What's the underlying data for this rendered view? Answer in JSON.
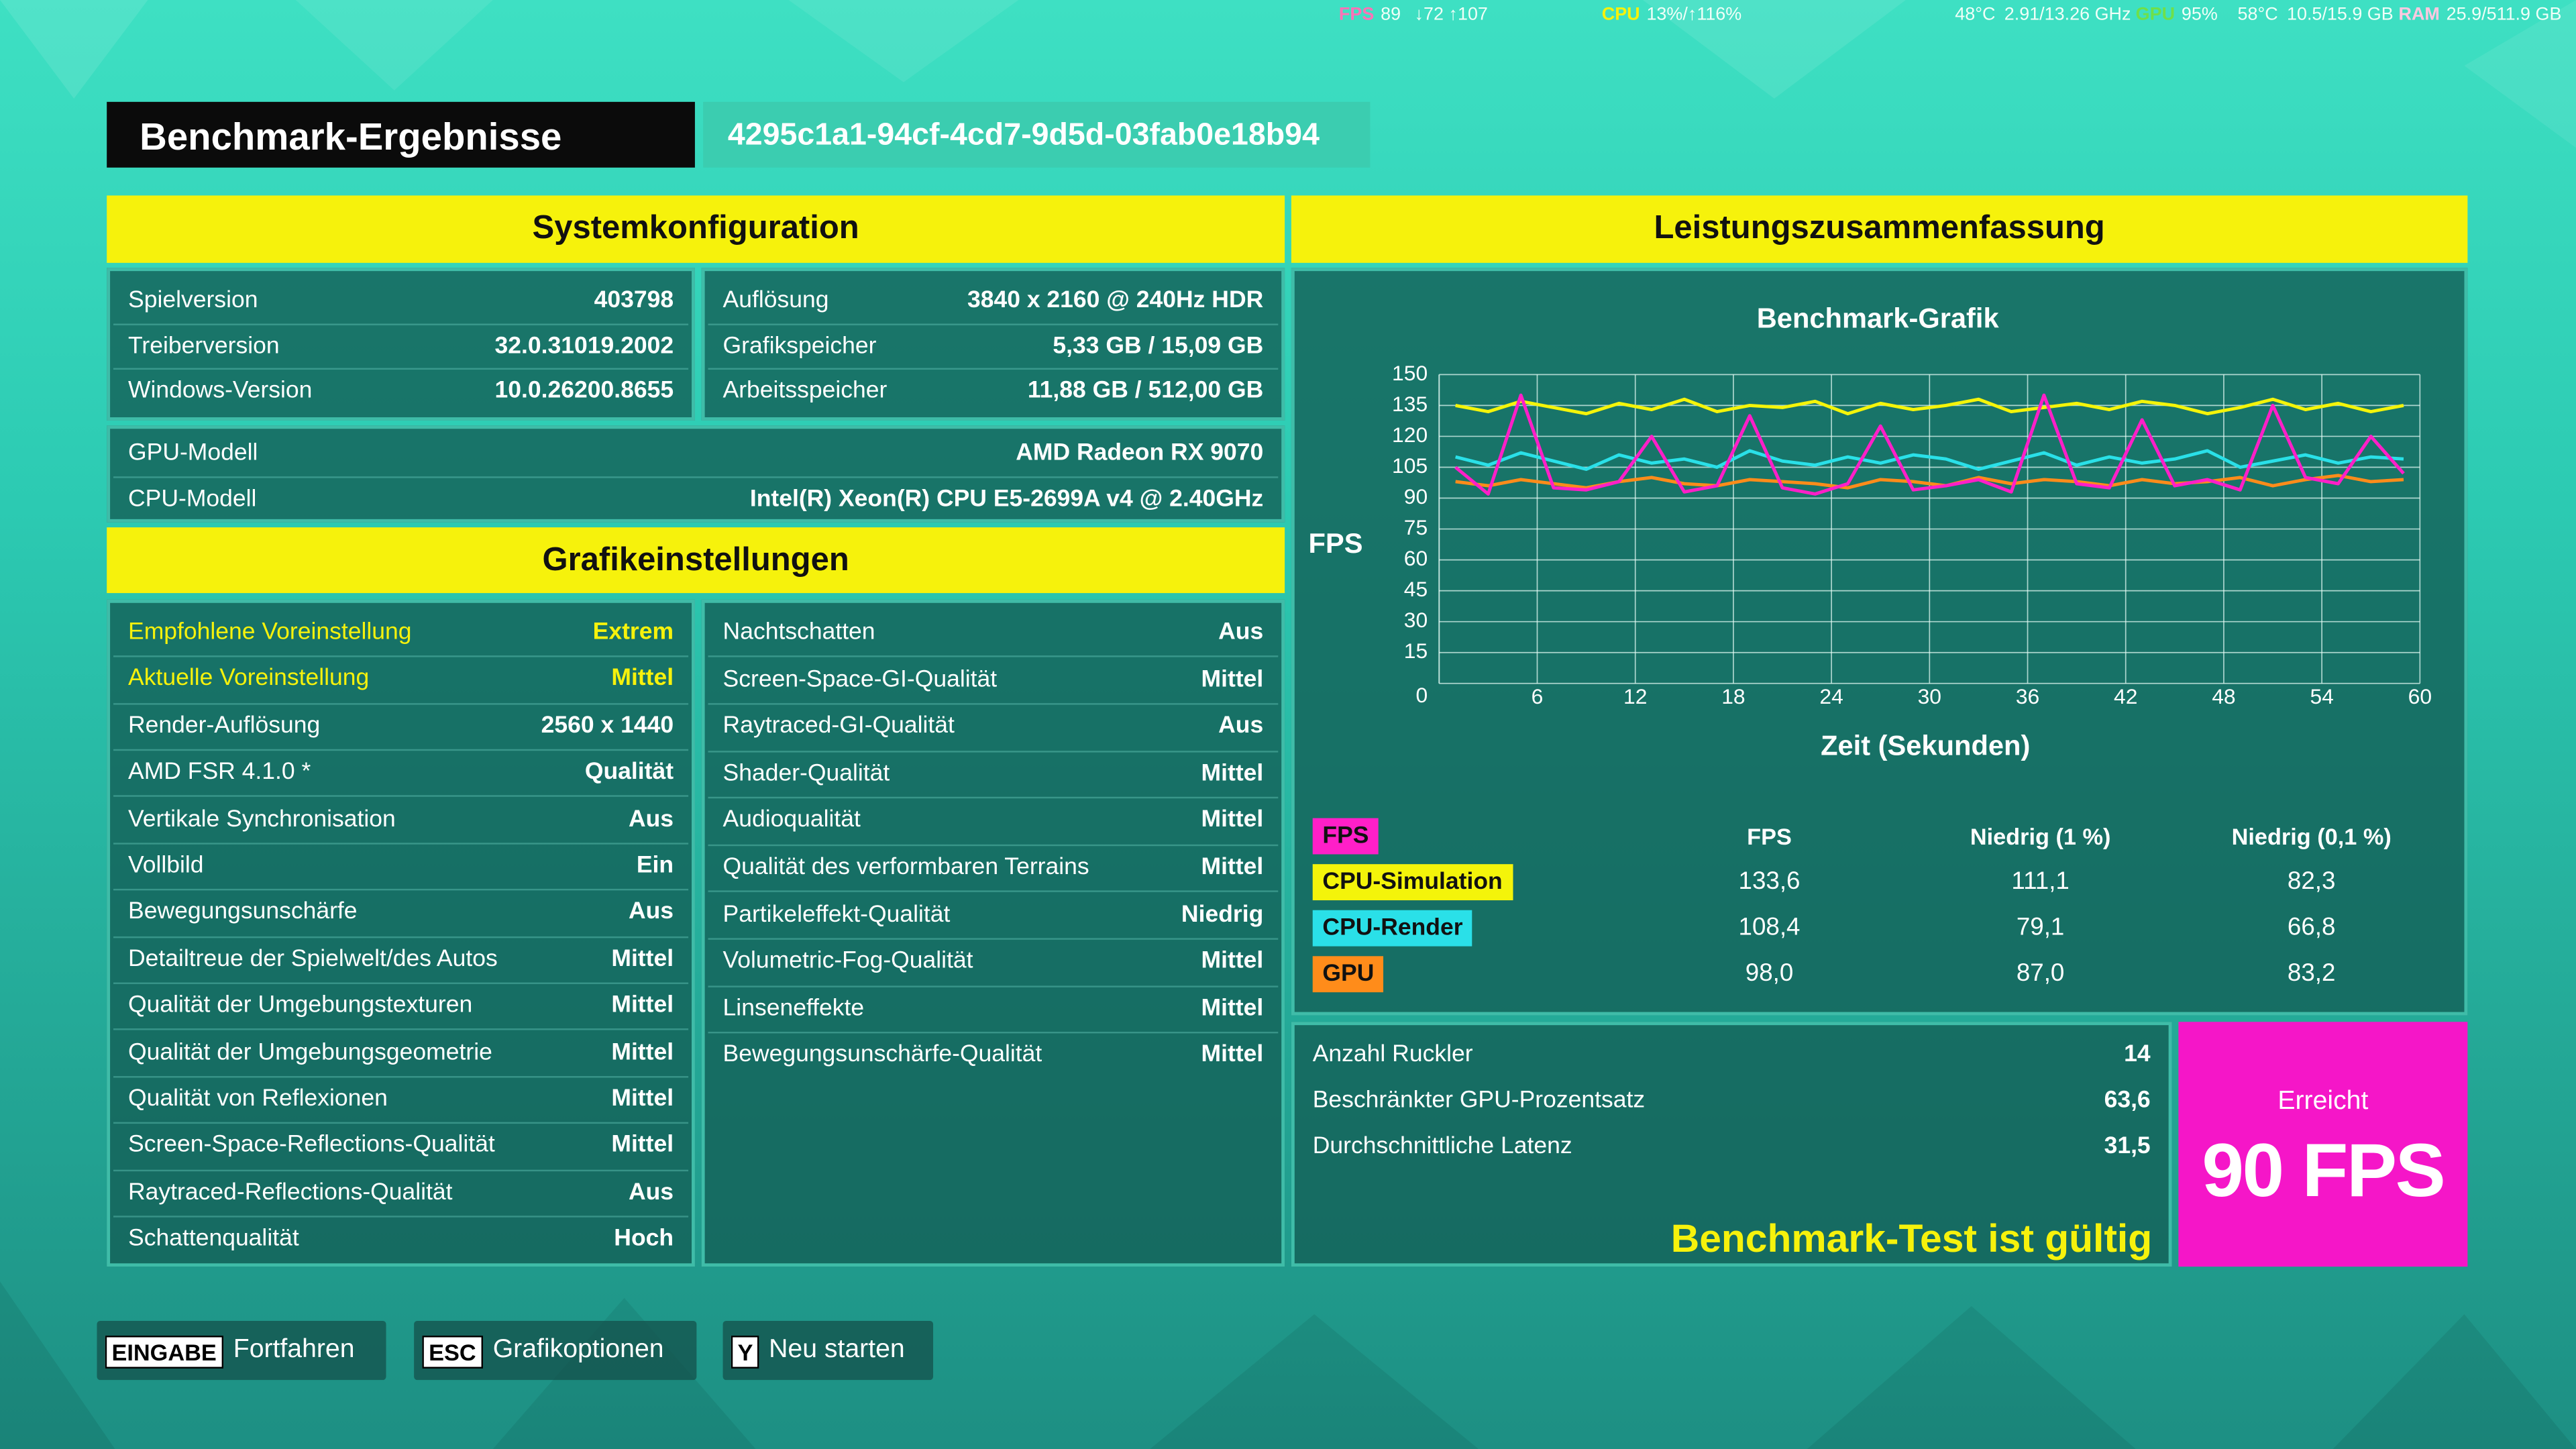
{
  "overlay": [
    {
      "label": "FPS",
      "value": "89"
    },
    {
      "value": "↓72 ↑107"
    },
    {
      "label": "CPU",
      "value": "13%/↑116%"
    },
    {
      "value": "48°C"
    },
    {
      "value": "2.91/13.26 GHz"
    },
    {
      "label": "GPU",
      "value": "95%"
    },
    {
      "value": "58°C"
    },
    {
      "value": "10.5/15.9 GB"
    },
    {
      "label": "RAM",
      "value": "25.9/511.9 GB"
    }
  ],
  "header": {
    "title": "Benchmark-Ergebnisse",
    "id": "4295c1a1-94cf-4cd7-9d5d-03fab0e18b94"
  },
  "system": {
    "title": "Systemkonfiguration",
    "left": [
      [
        "Spielversion",
        "403798"
      ],
      [
        "Treiberversion",
        "32.0.31019.2002"
      ],
      [
        "Windows-Version",
        "10.0.26200.8655"
      ]
    ],
    "right": [
      [
        "Auflösung",
        "3840 x 2160 @ 240Hz HDR"
      ],
      [
        "Grafikspeicher",
        "5,33 GB / 15,09 GB"
      ],
      [
        "Arbeitsspeicher",
        "11,88 GB / 512,00 GB"
      ]
    ],
    "hardware": [
      [
        "GPU-Modell",
        "AMD Radeon RX 9070"
      ],
      [
        "CPU-Modell",
        "Intel(R) Xeon(R) CPU E5-2699A v4 @ 2.40GHz"
      ]
    ]
  },
  "graphics": {
    "title": "Grafikeinstellungen",
    "left": [
      [
        "Empfohlene Voreinstellung",
        "Extrem"
      ],
      [
        "Aktuelle Voreinstellung",
        "Mittel"
      ],
      [
        "Render-Auflösung",
        "2560 x 1440"
      ],
      [
        "AMD FSR 4.1.0 *",
        "Qualität"
      ],
      [
        "Vertikale Synchronisation",
        "Aus"
      ],
      [
        "Vollbild",
        "Ein"
      ],
      [
        "Bewegungsunschärfe",
        "Aus"
      ],
      [
        "Detailtreue der Spielwelt/des Autos",
        "Mittel"
      ],
      [
        "Qualität der Umgebungstexturen",
        "Mittel"
      ],
      [
        "Qualität der Umgebungsgeometrie",
        "Mittel"
      ],
      [
        "Qualität von Reflexionen",
        "Mittel"
      ],
      [
        "Screen-Space-Reflections-Qualität",
        "Mittel"
      ],
      [
        "Raytraced-Reflections-Qualität",
        "Aus"
      ],
      [
        "Schattenqualität",
        "Hoch"
      ]
    ],
    "right": [
      [
        "Nachtschatten",
        "Aus"
      ],
      [
        "Screen-Space-GI-Qualität",
        "Mittel"
      ],
      [
        "Raytraced-GI-Qualität",
        "Aus"
      ],
      [
        "Shader-Qualität",
        "Mittel"
      ],
      [
        "Audioqualität",
        "Mittel"
      ],
      [
        "Qualität des verformbaren Terrains",
        "Mittel"
      ],
      [
        "Partikeleffekt-Qualität",
        "Niedrig"
      ],
      [
        "Volumetric-Fog-Qualität",
        "Mittel"
      ],
      [
        "Linseneffekte",
        "Mittel"
      ],
      [
        "Bewegungsunschärfe-Qualität",
        "Mittel"
      ]
    ],
    "highlight_color": "#f6f20c",
    "highlight_rows": [
      0,
      1
    ]
  },
  "performance": {
    "title": "Leistungszusammenfassung",
    "columns": [
      "FPS",
      "Niedrig (1 %)",
      "Niedrig (0,1 %)"
    ],
    "rows": [
      [
        "133,6",
        "111,1",
        "82,3"
      ],
      [
        "108,4",
        "79,1",
        "66,8"
      ],
      [
        "98,0",
        "87,0",
        "83,2"
      ]
    ],
    "stats": [
      [
        "Anzahl Ruckler",
        "14"
      ],
      [
        "Beschränkter GPU-Prozentsatz",
        "63,6"
      ],
      [
        "Durchschnittliche Latenz",
        "31,5"
      ]
    ],
    "valid": "Benchmark-Test ist gültig",
    "achieved_label": "Erreicht",
    "achieved": "90 FPS"
  },
  "footer": [
    {
      "key": "EINGABE",
      "label": "Fortfahren"
    },
    {
      "key": "ESC",
      "label": "Grafikoptionen"
    },
    {
      "key": "Y",
      "label": "Neu starten"
    }
  ],
  "chart_data": {
    "type": "line",
    "title": "Benchmark-Grafik",
    "y_label": "FPS",
    "x_label": "Zeit (Sekunden)",
    "xlim": [
      0,
      60
    ],
    "ylim": [
      0,
      150
    ],
    "xticks": [
      6,
      12,
      18,
      24,
      30,
      36,
      42,
      48,
      54,
      60
    ],
    "yticks": [
      0,
      15,
      30,
      45,
      60,
      75,
      90,
      105,
      120,
      135,
      150
    ],
    "grid": true,
    "x": [
      1,
      3,
      5,
      7,
      9,
      11,
      13,
      15,
      17,
      19,
      21,
      23,
      25,
      27,
      29,
      31,
      33,
      35,
      37,
      39,
      41,
      43,
      45,
      47,
      49,
      51,
      53,
      55,
      57,
      59
    ],
    "series": [
      {
        "name": "FPS",
        "color": "#ff1fc8",
        "values": [
          105,
          92,
          140,
          95,
          94,
          98,
          120,
          93,
          96,
          130,
          95,
          92,
          97,
          125,
          94,
          96,
          99,
          93,
          140,
          97,
          95,
          128,
          96,
          99,
          94,
          135,
          100,
          97,
          120,
          102
        ]
      },
      {
        "name": "CPU-Simulation",
        "color": "#f4f40a",
        "values": [
          135,
          132,
          137,
          134,
          131,
          136,
          133,
          138,
          132,
          135,
          134,
          137,
          131,
          136,
          133,
          135,
          138,
          132,
          134,
          136,
          133,
          137,
          135,
          131,
          134,
          138,
          133,
          136,
          132,
          135
        ]
      },
      {
        "name": "CPU-Render",
        "color": "#2ae0e8",
        "values": [
          110,
          106,
          112,
          108,
          104,
          111,
          107,
          109,
          105,
          113,
          108,
          106,
          110,
          107,
          111,
          109,
          104,
          108,
          112,
          106,
          110,
          107,
          109,
          113,
          105,
          108,
          111,
          107,
          110,
          109
        ]
      },
      {
        "name": "GPU",
        "color": "#ff8c1a",
        "values": [
          98,
          96,
          99,
          97,
          95,
          98,
          100,
          97,
          96,
          99,
          98,
          97,
          95,
          99,
          98,
          96,
          100,
          97,
          99,
          98,
          96,
          99,
          97,
          98,
          100,
          96,
          99,
          101,
          98,
          99
        ]
      }
    ]
  }
}
